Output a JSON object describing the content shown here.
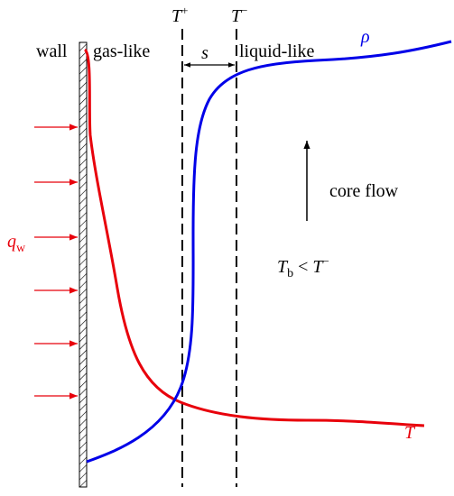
{
  "labels": {
    "wall": "wall",
    "gas_like": "gas-like",
    "liquid_like": "liquid-like",
    "t_plus": {
      "base": "T",
      "sup": "+"
    },
    "t_minus": {
      "base": "T",
      "sup": "−"
    },
    "gap": "s",
    "density": "ρ",
    "core_flow": "core flow",
    "heat_flux": {
      "base": "q",
      "sub": "w"
    },
    "condition": {
      "base": "T",
      "sub": "b",
      "relation": " < ",
      "rhs_base": "T",
      "rhs_sup": "−"
    },
    "temperature": "T"
  }
}
